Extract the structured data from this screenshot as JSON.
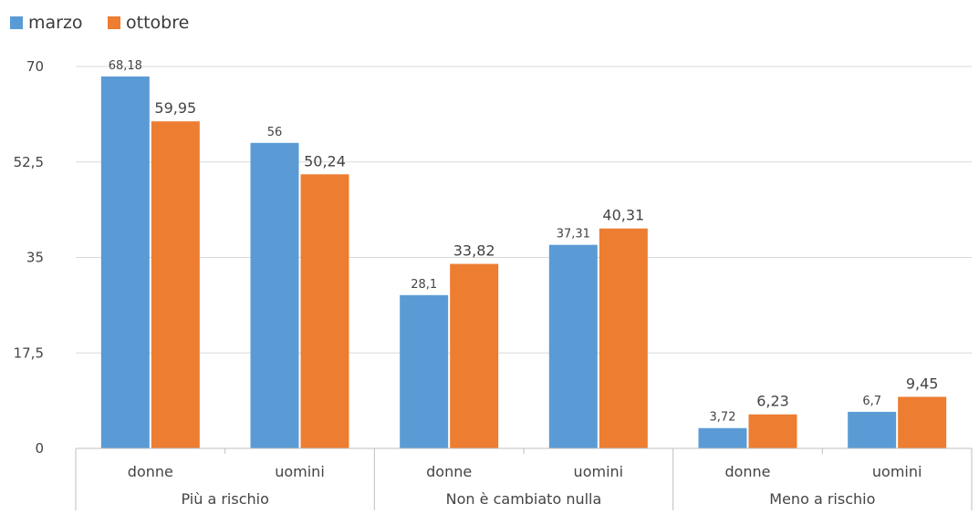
{
  "chart_data": {
    "type": "bar",
    "groups": [
      {
        "label": "Più a rischio",
        "categories": [
          "donne",
          "uomini"
        ]
      },
      {
        "label": "Non è cambiato nulla",
        "categories": [
          "donne",
          "uomini"
        ]
      },
      {
        "label": "Meno a rischio",
        "categories": [
          "donne",
          "uomini"
        ]
      }
    ],
    "categories": [
      "donne",
      "uomini",
      "donne",
      "uomini",
      "donne",
      "uomini"
    ],
    "series": [
      {
        "name": "marzo",
        "color": "#5b9bd5",
        "values": [
          68.18,
          56,
          28.1,
          37.31,
          3.72,
          6.7
        ],
        "labels": [
          "68,18",
          "56",
          "28,1",
          "37,31",
          "3,72",
          "6,7"
        ]
      },
      {
        "name": "ottobre",
        "color": "#ed7d31",
        "values": [
          59.95,
          50.24,
          33.82,
          40.31,
          6.23,
          9.45
        ],
        "labels": [
          "59,95",
          "50,24",
          "33,82",
          "40,31",
          "6,23",
          "9,45"
        ]
      }
    ],
    "ylim": [
      0,
      70
    ],
    "yticks": [
      0,
      17.5,
      35,
      52.5,
      70
    ],
    "ytick_labels": [
      "0",
      "17,5",
      "35",
      "52,5",
      "70"
    ],
    "grid": true,
    "legend": "top-left"
  }
}
